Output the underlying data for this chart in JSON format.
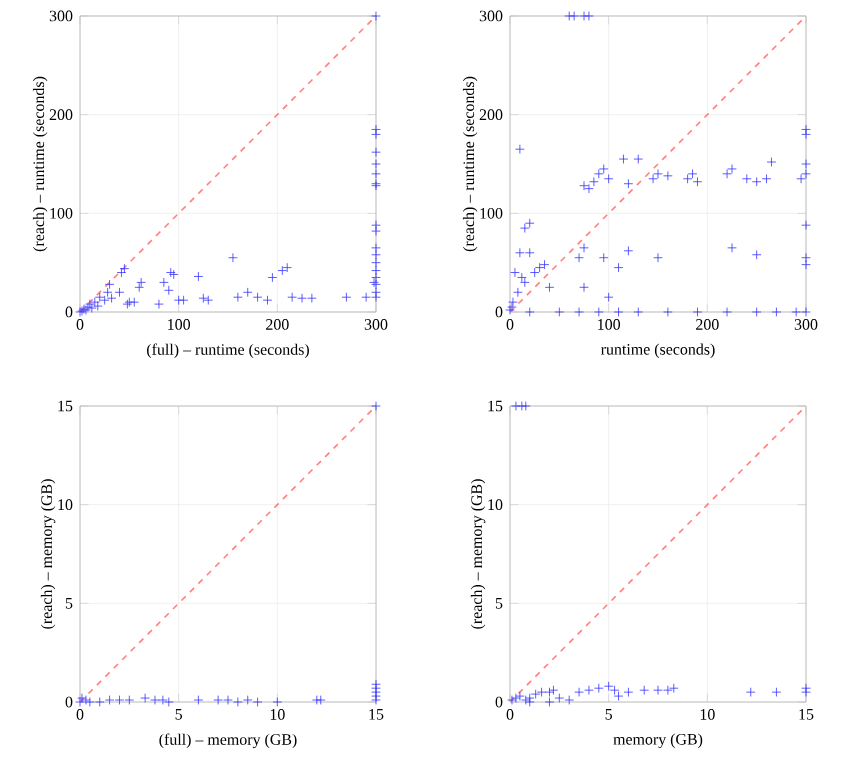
{
  "chart_data": [
    {
      "type": "scatter",
      "xlabel": "(full) – runtime (seconds)",
      "ylabel": "(reach) – runtime (seconds)",
      "xlim": [
        0,
        300
      ],
      "ylim": [
        0,
        300
      ],
      "xticks": [
        0,
        100,
        200,
        300
      ],
      "yticks": [
        0,
        100,
        200,
        300
      ],
      "grid": true,
      "series": [
        {
          "color": "#3333ff",
          "marker": "cross",
          "x": [
            0,
            2,
            4,
            6,
            8,
            10,
            12,
            15,
            18,
            20,
            25,
            28,
            30,
            32,
            40,
            42,
            45,
            48,
            50,
            55,
            60,
            62,
            80,
            85,
            90,
            92,
            95,
            100,
            105,
            120,
            125,
            130,
            155,
            160,
            170,
            180,
            190,
            195,
            205,
            210,
            215,
            225,
            235,
            270,
            290,
            298,
            300,
            300,
            300,
            300,
            300,
            300,
            300,
            300,
            300,
            300,
            300,
            300,
            300,
            300,
            300,
            300,
            300,
            300
          ],
          "values": [
            0,
            1,
            3,
            2,
            5,
            8,
            4,
            10,
            6,
            15,
            12,
            20,
            28,
            14,
            20,
            40,
            44,
            8,
            10,
            10,
            25,
            30,
            8,
            30,
            22,
            40,
            38,
            12,
            12,
            36,
            14,
            12,
            55,
            15,
            20,
            15,
            12,
            35,
            42,
            45,
            15,
            14,
            14,
            15,
            15,
            30,
            300,
            185,
            180,
            162,
            150,
            140,
            130,
            128,
            88,
            82,
            65,
            58,
            50,
            42,
            35,
            28,
            20,
            15
          ]
        },
        {
          "type": "line",
          "color": "#ff8080",
          "line_style": "dashed",
          "x": [
            0,
            300
          ],
          "values": [
            0,
            300
          ]
        }
      ]
    },
    {
      "type": "scatter",
      "xlabel": "runtime (seconds)",
      "ylabel": "(reach) – runtime (seconds)",
      "xlim": [
        0,
        300
      ],
      "ylim": [
        0,
        300
      ],
      "xticks": [
        0,
        100,
        200,
        300
      ],
      "yticks": [
        0,
        100,
        200,
        300
      ],
      "grid": true,
      "series": [
        {
          "color": "#3333ff",
          "marker": "cross",
          "x": [
            60,
            65,
            75,
            80,
            10,
            300,
            300,
            300,
            300,
            295,
            75,
            80,
            85,
            90,
            95,
            100,
            115,
            120,
            130,
            145,
            150,
            160,
            180,
            185,
            190,
            220,
            225,
            240,
            250,
            260,
            265,
            300,
            300,
            300,
            225,
            250,
            150,
            120,
            110,
            95,
            75,
            70,
            100,
            75,
            40,
            20,
            15,
            30,
            35,
            10,
            5,
            12,
            15,
            8,
            3,
            2,
            0,
            20,
            50,
            70,
            90,
            110,
            130,
            160,
            190,
            220,
            250,
            270,
            290,
            300,
            20,
            25
          ],
          "values": [
            300,
            300,
            300,
            300,
            165,
            185,
            180,
            150,
            140,
            135,
            128,
            125,
            132,
            140,
            145,
            135,
            155,
            130,
            155,
            135,
            140,
            138,
            135,
            140,
            132,
            140,
            145,
            135,
            132,
            135,
            152,
            88,
            55,
            48,
            65,
            58,
            55,
            62,
            45,
            55,
            65,
            55,
            15,
            25,
            25,
            90,
            85,
            45,
            48,
            60,
            40,
            35,
            30,
            20,
            10,
            5,
            2,
            0,
            0,
            0,
            0,
            0,
            0,
            0,
            0,
            0,
            0,
            0,
            0,
            0,
            60,
            40
          ]
        },
        {
          "type": "line",
          "color": "#ff8080",
          "line_style": "dashed",
          "x": [
            0,
            300
          ],
          "values": [
            0,
            300
          ]
        }
      ]
    },
    {
      "type": "scatter",
      "xlabel": "(full) – memory (GB)",
      "ylabel": "(reach) – memory (GB)",
      "xlim": [
        0,
        15
      ],
      "ylim": [
        0,
        15
      ],
      "xticks": [
        0,
        5,
        10,
        15
      ],
      "yticks": [
        0,
        5,
        10,
        15
      ],
      "grid": true,
      "series": [
        {
          "color": "#3333ff",
          "marker": "cross",
          "x": [
            0,
            0.3,
            0.5,
            1,
            1.5,
            2,
            2.5,
            3.3,
            3.8,
            4.2,
            4.5,
            6,
            7,
            7.5,
            8,
            8.5,
            9,
            10,
            12,
            12.2,
            15,
            15,
            15,
            15,
            15,
            15,
            0.1
          ],
          "values": [
            0,
            0.1,
            0,
            0,
            0.1,
            0.1,
            0.1,
            0.2,
            0.1,
            0.1,
            0,
            0.1,
            0.1,
            0.1,
            0,
            0.1,
            0,
            0,
            0.1,
            0.1,
            15,
            0.9,
            0.7,
            0.5,
            0.3,
            0.1,
            0.2
          ]
        },
        {
          "type": "line",
          "color": "#ff8080",
          "line_style": "dashed",
          "x": [
            0,
            15
          ],
          "values": [
            0,
            15
          ]
        }
      ]
    },
    {
      "type": "scatter",
      "xlabel": "memory (GB)",
      "ylabel": "(reach) – memory (GB)",
      "xlim": [
        0,
        15
      ],
      "ylim": [
        0,
        15
      ],
      "xticks": [
        0,
        5,
        10,
        15
      ],
      "yticks": [
        0,
        5,
        10,
        15
      ],
      "grid": true,
      "series": [
        {
          "color": "#3333ff",
          "marker": "cross",
          "x": [
            0.3,
            0.6,
            0.8,
            0.1,
            0.3,
            0.5,
            0.8,
            1,
            1.3,
            1.6,
            2,
            2.2,
            2.5,
            3,
            3.5,
            4,
            4.5,
            5,
            5.3,
            5.5,
            6,
            6.8,
            7.5,
            8,
            8.3,
            12.2,
            13.5,
            15,
            15,
            2,
            1
          ],
          "values": [
            15,
            15,
            15,
            0.1,
            0.2,
            0.3,
            0.1,
            0.2,
            0.4,
            0.5,
            0.5,
            0.6,
            0.2,
            0.1,
            0.5,
            0.6,
            0.7,
            0.8,
            0.6,
            0.3,
            0.5,
            0.6,
            0.6,
            0.6,
            0.7,
            0.5,
            0.5,
            0.7,
            0.5,
            0,
            0
          ]
        },
        {
          "type": "line",
          "color": "#ff8080",
          "line_style": "dashed",
          "x": [
            0,
            15
          ],
          "values": [
            0,
            15
          ]
        }
      ]
    }
  ]
}
